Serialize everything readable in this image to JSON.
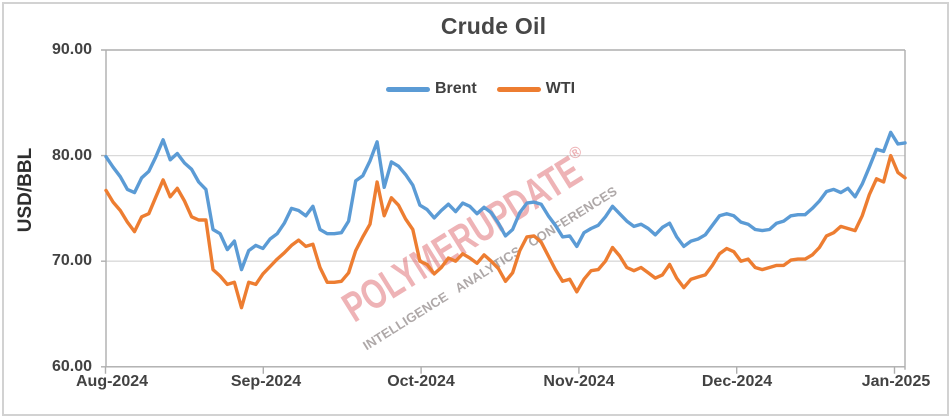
{
  "chart": {
    "title": "Crude Oil",
    "y_axis_label": "USD/BBL",
    "legend": {
      "items": [
        {
          "label": "Brent"
        },
        {
          "label": "WTI"
        }
      ]
    }
  },
  "watermark": {
    "main": "POLYMERUPDATE",
    "reg": "®",
    "sub": "INTELLIGENCE   ANALYTICS   CONFERENCES",
    "main_color": "rgba(217,86,94,0.45)",
    "sub_color": "rgba(120,110,110,0.60)"
  },
  "colors": {
    "label_text": "#424242",
    "axis": "#aeaeae",
    "gridline": "#d9d9d9"
  },
  "chart_data": {
    "type": "line",
    "title": "Crude Oil",
    "xlabel": "",
    "ylabel": "USD/BBL",
    "ylim": [
      60,
      90
    ],
    "y_tick_interval": 10,
    "y_tick_labels": [
      "90.00",
      "80.00",
      "70.00",
      "60.00"
    ],
    "x_tick_labels": [
      "Aug-2024",
      "Sep-2024",
      "Oct-2024",
      "Nov-2024",
      "Dec-2024",
      "Jan-2025"
    ],
    "grid": "horizontal",
    "legend_position": "top-center",
    "series": [
      {
        "name": "Brent",
        "color": "#5B9BD5",
        "values": [
          79.9,
          78.9,
          78.0,
          76.8,
          76.5,
          77.9,
          78.5,
          79.9,
          81.5,
          79.6,
          80.2,
          79.3,
          78.7,
          77.5,
          76.8,
          73.0,
          72.6,
          71.1,
          71.9,
          69.2,
          71.0,
          71.5,
          71.2,
          72.1,
          72.6,
          73.6,
          75.0,
          74.8,
          74.3,
          75.2,
          73.0,
          72.6,
          72.6,
          72.7,
          73.8,
          77.6,
          78.1,
          79.5,
          81.3,
          77.0,
          79.4,
          79.0,
          78.2,
          77.2,
          75.3,
          74.9,
          74.1,
          74.8,
          75.4,
          74.7,
          75.5,
          75.2,
          74.5,
          75.1,
          74.6,
          73.6,
          72.4,
          73.0,
          74.6,
          75.5,
          75.6,
          75.4,
          74.3,
          73.4,
          72.3,
          72.4,
          71.4,
          72.7,
          73.1,
          73.4,
          74.2,
          75.2,
          74.5,
          73.8,
          73.3,
          73.5,
          73.1,
          72.5,
          73.2,
          73.6,
          72.3,
          71.4,
          71.9,
          72.1,
          72.5,
          73.4,
          74.3,
          74.5,
          74.3,
          73.7,
          73.5,
          73.0,
          72.9,
          73.0,
          73.6,
          73.8,
          74.3,
          74.4,
          74.4,
          75.0,
          75.7,
          76.6,
          76.8,
          76.5,
          76.9,
          76.1,
          77.3,
          78.9,
          80.6,
          80.4,
          82.2,
          81.1,
          81.2
        ]
      },
      {
        "name": "WTI",
        "color": "#ED7D31",
        "values": [
          76.7,
          75.6,
          74.8,
          73.7,
          72.8,
          74.2,
          74.5,
          76.1,
          77.7,
          76.1,
          76.9,
          75.7,
          74.2,
          73.9,
          73.9,
          69.2,
          68.6,
          67.8,
          68.0,
          65.6,
          68.0,
          67.8,
          68.8,
          69.5,
          70.2,
          70.8,
          71.5,
          72.0,
          71.4,
          71.6,
          69.4,
          68.0,
          68.0,
          68.1,
          68.9,
          71.0,
          72.3,
          73.5,
          77.5,
          74.3,
          76.0,
          75.3,
          74.0,
          73.0,
          70.0,
          69.7,
          68.8,
          69.4,
          70.3,
          70.0,
          70.7,
          70.3,
          69.8,
          70.6,
          70.0,
          69.3,
          68.1,
          68.9,
          71.0,
          72.3,
          72.4,
          71.8,
          70.5,
          69.2,
          68.1,
          68.3,
          67.1,
          68.3,
          69.1,
          69.2,
          70.0,
          71.3,
          70.5,
          69.4,
          69.1,
          69.4,
          68.9,
          68.4,
          68.7,
          69.7,
          68.4,
          67.5,
          68.3,
          68.5,
          68.7,
          69.6,
          70.7,
          71.2,
          70.9,
          70.0,
          70.2,
          69.4,
          69.2,
          69.4,
          69.6,
          69.6,
          70.1,
          70.2,
          70.2,
          70.6,
          71.3,
          72.4,
          72.7,
          73.3,
          73.1,
          72.9,
          74.3,
          76.3,
          77.8,
          77.5,
          80.0,
          78.4,
          77.9
        ]
      }
    ]
  }
}
